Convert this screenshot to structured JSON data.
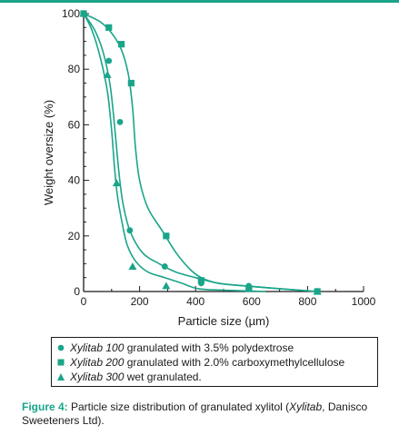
{
  "colors": {
    "accent": "#1aa58a",
    "axis": "#1b1b1b",
    "text": "#1b1b1b"
  },
  "chart_data": {
    "type": "scatter",
    "xlabel": "Particle size (µm)",
    "ylabel": "Weight oversize (%)",
    "xlim": [
      0,
      1000
    ],
    "ylim": [
      0,
      100
    ],
    "x_ticks": [
      0,
      200,
      400,
      600,
      800,
      1000
    ],
    "y_ticks": [
      0,
      20,
      40,
      60,
      80,
      100
    ],
    "grid": false,
    "series": [
      {
        "name": "Xylitab 100 granulated with 3.5% polydextrose",
        "marker": "circle",
        "points": [
          [
            0,
            100
          ],
          [
            90,
            83
          ],
          [
            130,
            61
          ],
          [
            165,
            22
          ],
          [
            290,
            9
          ],
          [
            420,
            3
          ],
          [
            590,
            2
          ],
          [
            835,
            0
          ]
        ],
        "curve": [
          [
            0,
            100
          ],
          [
            40,
            94
          ],
          [
            70,
            86
          ],
          [
            95,
            74
          ],
          [
            112,
            58
          ],
          [
            125,
            44
          ],
          [
            140,
            32
          ],
          [
            165,
            22
          ],
          [
            210,
            14
          ],
          [
            270,
            10
          ],
          [
            330,
            7
          ],
          [
            400,
            5
          ],
          [
            480,
            3
          ],
          [
            580,
            2
          ],
          [
            700,
            1
          ],
          [
            835,
            0
          ]
        ]
      },
      {
        "name": "Xylitab 200 granulated with 2.0% carboxymethylcellulose",
        "marker": "square",
        "points": [
          [
            0,
            100
          ],
          [
            90,
            95
          ],
          [
            135,
            89
          ],
          [
            170,
            75
          ],
          [
            295,
            20
          ],
          [
            420,
            4
          ],
          [
            590,
            1
          ],
          [
            835,
            0
          ]
        ],
        "curve": [
          [
            0,
            100
          ],
          [
            60,
            97
          ],
          [
            100,
            93
          ],
          [
            135,
            87
          ],
          [
            160,
            78
          ],
          [
            175,
            66
          ],
          [
            185,
            52
          ],
          [
            200,
            40
          ],
          [
            230,
            30
          ],
          [
            280,
            22
          ],
          [
            330,
            14
          ],
          [
            380,
            8
          ],
          [
            420,
            5
          ],
          [
            480,
            3
          ],
          [
            580,
            2
          ],
          [
            700,
            1
          ],
          [
            835,
            0
          ]
        ]
      },
      {
        "name": "Xylitab 300 wet granulated.",
        "marker": "triangle",
        "points": [
          [
            0,
            100
          ],
          [
            85,
            78
          ],
          [
            118,
            39
          ],
          [
            175,
            9
          ],
          [
            295,
            2
          ],
          [
            835,
            0
          ]
        ],
        "curve": [
          [
            0,
            100
          ],
          [
            30,
            94
          ],
          [
            60,
            84
          ],
          [
            85,
            72
          ],
          [
            100,
            58
          ],
          [
            110,
            45
          ],
          [
            120,
            35
          ],
          [
            135,
            26
          ],
          [
            155,
            17
          ],
          [
            185,
            11
          ],
          [
            230,
            7
          ],
          [
            290,
            5
          ],
          [
            350,
            3
          ],
          [
            410,
            1
          ],
          [
            500,
            0.5
          ],
          [
            650,
            0
          ]
        ]
      }
    ]
  },
  "legend": [
    {
      "marker": "circle",
      "italic": "Xylitab 100",
      "text": " granulated with 3.5% polydextrose"
    },
    {
      "marker": "square",
      "italic": "Xylitab 200",
      "text": " granulated with 2.0% carboxymethylcellulose"
    },
    {
      "marker": "triangle",
      "italic": "Xylitab 300",
      "text": " wet granulated."
    }
  ],
  "caption": {
    "label": "Figure 4:",
    "text_1": " Particle size distribution of granulated xylitol (",
    "italic": "Xylitab",
    "text_2": ", Danisco Sweeteners Ltd)."
  }
}
